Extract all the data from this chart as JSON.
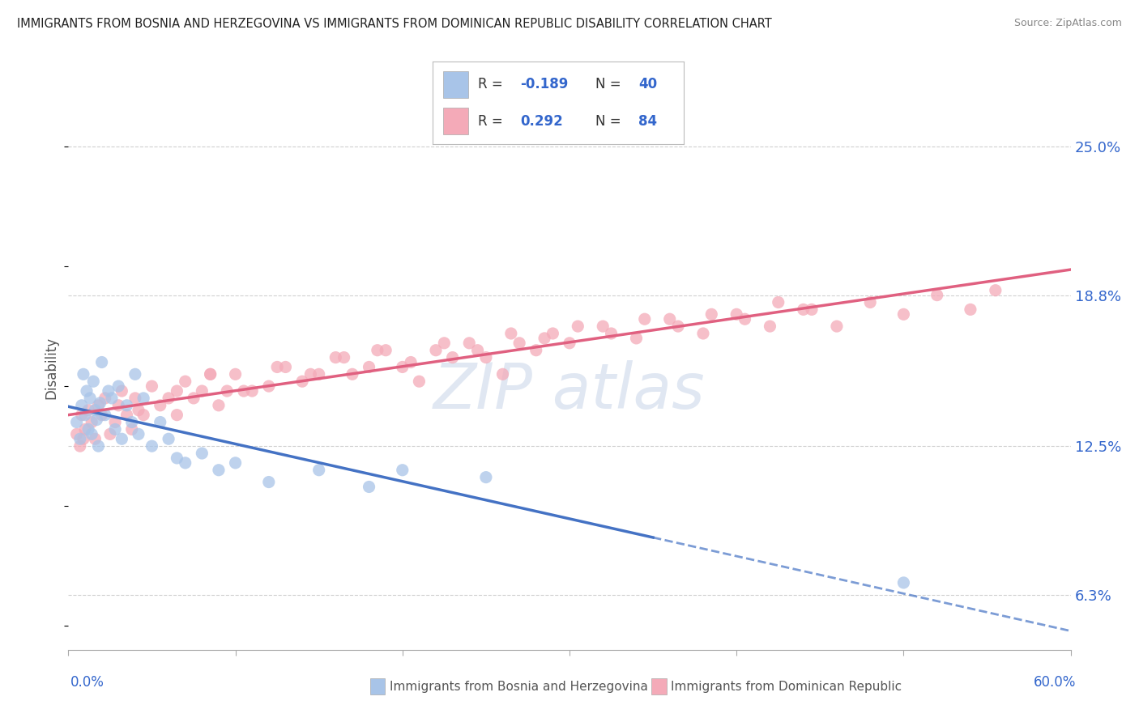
{
  "title": "IMMIGRANTS FROM BOSNIA AND HERZEGOVINA VS IMMIGRANTS FROM DOMINICAN REPUBLIC DISABILITY CORRELATION CHART",
  "source": "Source: ZipAtlas.com",
  "ylabel_label": "Disability",
  "y_ticks": [
    0.063,
    0.125,
    0.188,
    0.25
  ],
  "y_tick_labels": [
    "6.3%",
    "12.5%",
    "18.8%",
    "25.0%"
  ],
  "x_lim": [
    0.0,
    0.6
  ],
  "y_lim": [
    0.04,
    0.275
  ],
  "series1_label": "Immigrants from Bosnia and Herzegovina",
  "series1_color": "#a8c4e8",
  "series1_line_color": "#4472c4",
  "series1_R": -0.189,
  "series1_N": 40,
  "series2_label": "Immigrants from Dominican Republic",
  "series2_color": "#f4aab8",
  "series2_line_color": "#e06080",
  "series2_R": 0.292,
  "series2_N": 84,
  "background_color": "#ffffff",
  "grid_color": "#d0d0d0",
  "legend_color": "#3366cc",
  "series1_scatter_x": [
    0.005,
    0.007,
    0.008,
    0.009,
    0.01,
    0.011,
    0.012,
    0.013,
    0.014,
    0.015,
    0.016,
    0.017,
    0.018,
    0.019,
    0.02,
    0.022,
    0.024,
    0.026,
    0.028,
    0.03,
    0.032,
    0.035,
    0.038,
    0.04,
    0.042,
    0.045,
    0.05,
    0.055,
    0.06,
    0.065,
    0.07,
    0.08,
    0.09,
    0.1,
    0.12,
    0.15,
    0.18,
    0.2,
    0.25,
    0.5
  ],
  "series1_scatter_y": [
    0.135,
    0.128,
    0.142,
    0.155,
    0.138,
    0.148,
    0.132,
    0.145,
    0.13,
    0.152,
    0.14,
    0.136,
    0.125,
    0.143,
    0.16,
    0.138,
    0.148,
    0.145,
    0.132,
    0.15,
    0.128,
    0.142,
    0.135,
    0.155,
    0.13,
    0.145,
    0.125,
    0.135,
    0.128,
    0.12,
    0.118,
    0.122,
    0.115,
    0.118,
    0.11,
    0.115,
    0.108,
    0.115,
    0.112,
    0.068
  ],
  "series2_scatter_x": [
    0.005,
    0.007,
    0.008,
    0.009,
    0.01,
    0.012,
    0.014,
    0.016,
    0.018,
    0.02,
    0.022,
    0.025,
    0.028,
    0.03,
    0.032,
    0.035,
    0.038,
    0.04,
    0.042,
    0.045,
    0.05,
    0.055,
    0.06,
    0.065,
    0.07,
    0.075,
    0.08,
    0.085,
    0.09,
    0.095,
    0.1,
    0.11,
    0.12,
    0.13,
    0.14,
    0.15,
    0.16,
    0.17,
    0.18,
    0.19,
    0.2,
    0.21,
    0.22,
    0.23,
    0.24,
    0.25,
    0.26,
    0.27,
    0.28,
    0.29,
    0.3,
    0.32,
    0.34,
    0.36,
    0.38,
    0.4,
    0.42,
    0.44,
    0.46,
    0.48,
    0.5,
    0.52,
    0.54,
    0.555,
    0.065,
    0.085,
    0.105,
    0.125,
    0.145,
    0.165,
    0.185,
    0.205,
    0.225,
    0.245,
    0.265,
    0.285,
    0.305,
    0.325,
    0.345,
    0.365,
    0.385,
    0.405,
    0.425,
    0.445
  ],
  "series2_scatter_y": [
    0.13,
    0.125,
    0.138,
    0.128,
    0.132,
    0.14,
    0.135,
    0.128,
    0.142,
    0.138,
    0.145,
    0.13,
    0.135,
    0.142,
    0.148,
    0.138,
    0.132,
    0.145,
    0.14,
    0.138,
    0.15,
    0.142,
    0.145,
    0.138,
    0.152,
    0.145,
    0.148,
    0.155,
    0.142,
    0.148,
    0.155,
    0.148,
    0.15,
    0.158,
    0.152,
    0.155,
    0.162,
    0.155,
    0.158,
    0.165,
    0.158,
    0.152,
    0.165,
    0.162,
    0.168,
    0.162,
    0.155,
    0.168,
    0.165,
    0.172,
    0.168,
    0.175,
    0.17,
    0.178,
    0.172,
    0.18,
    0.175,
    0.182,
    0.175,
    0.185,
    0.18,
    0.188,
    0.182,
    0.19,
    0.148,
    0.155,
    0.148,
    0.158,
    0.155,
    0.162,
    0.165,
    0.16,
    0.168,
    0.165,
    0.172,
    0.17,
    0.175,
    0.172,
    0.178,
    0.175,
    0.18,
    0.178,
    0.185,
    0.182
  ]
}
